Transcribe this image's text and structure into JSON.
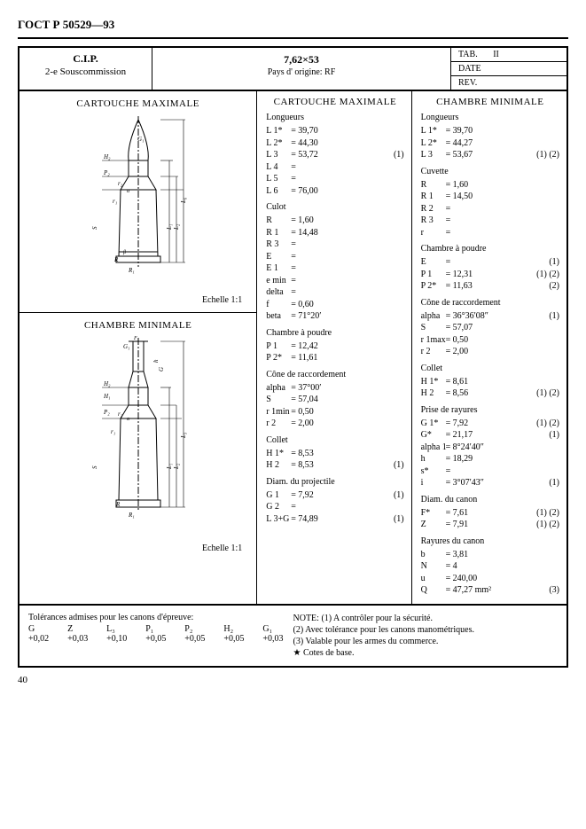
{
  "doc_header": "ГОСТ Р 50529—93",
  "header": {
    "cip_title": "C.I.P.",
    "cip_sub": "2-e Souscommission",
    "cal_title": "7,62×53",
    "cal_sub": "Pays d' origine: RF",
    "tab_label": "TAB.",
    "tab_value": "II",
    "date_label": "DATE",
    "rev_label": "REV."
  },
  "diagrams": {
    "cartridge_title": "CARTOUCHE MAXIMALE",
    "chamber_title": "CHAMBRE MINIMALE",
    "scale": "Echelle 1:1"
  },
  "data": {
    "left": {
      "title": "CARTOUCHE MAXIMALE",
      "groups": [
        {
          "heading": "Longueurs",
          "rows": [
            {
              "k": "L 1*",
              "v": "39,70"
            },
            {
              "k": "L 2*",
              "v": "44,30"
            },
            {
              "k": "L 3",
              "v": "53,72",
              "n": "(1)"
            },
            {
              "k": "L 4",
              "v": ""
            },
            {
              "k": "L 5",
              "v": ""
            },
            {
              "k": "L 6",
              "v": "76,00"
            }
          ]
        },
        {
          "heading": "Culot",
          "rows": [
            {
              "k": "R",
              "v": "1,60"
            },
            {
              "k": "R 1",
              "v": "14,48"
            },
            {
              "k": "R 3",
              "v": ""
            },
            {
              "k": "E",
              "v": ""
            },
            {
              "k": "E 1",
              "v": ""
            },
            {
              "k": "e min",
              "v": ""
            },
            {
              "k": "delta",
              "v": ""
            },
            {
              "k": "f",
              "v": "0,60"
            },
            {
              "k": "beta",
              "v": "71°20′"
            }
          ]
        },
        {
          "heading": "Chambre à poudre",
          "rows": [
            {
              "k": "P 1",
              "v": "12,42"
            },
            {
              "k": "P 2*",
              "v": "11,61"
            }
          ]
        },
        {
          "heading": "Cône de raccordement",
          "rows": [
            {
              "k": "alpha",
              "v": "37°00′"
            },
            {
              "k": "S",
              "v": "57,04"
            },
            {
              "k": "r 1min",
              "v": "0,50"
            },
            {
              "k": "r 2",
              "v": "2,00"
            }
          ]
        },
        {
          "heading": "Collet",
          "rows": [
            {
              "k": "H 1*",
              "v": "8,53"
            },
            {
              "k": "H 2",
              "v": "8,53",
              "n": "(1)"
            }
          ]
        },
        {
          "heading": "Diam. du projectile",
          "rows": [
            {
              "k": "G 1",
              "v": "7,92",
              "n": "(1)"
            },
            {
              "k": "G 2",
              "v": ""
            },
            {
              "k": "L 3+G",
              "v": "74,89",
              "n": "(1)"
            }
          ]
        }
      ]
    },
    "right": {
      "title": "CHAMBRE MINIMALE",
      "groups": [
        {
          "heading": "Longueurs",
          "rows": [
            {
              "k": "L 1*",
              "v": "39,70"
            },
            {
              "k": "L 2*",
              "v": "44,27"
            },
            {
              "k": "L 3",
              "v": "53,67",
              "n": "(1) (2)"
            }
          ]
        },
        {
          "heading": "Cuvette",
          "rows": [
            {
              "k": "R",
              "v": "1,60"
            },
            {
              "k": "R 1",
              "v": "14,50"
            },
            {
              "k": "R 2",
              "v": ""
            },
            {
              "k": "R 3",
              "v": ""
            },
            {
              "k": "r",
              "v": ""
            }
          ]
        },
        {
          "heading": "Chambre à poudre",
          "rows": [
            {
              "k": "E",
              "v": "",
              "n": "(1)"
            },
            {
              "k": "P 1",
              "v": "12,31",
              "n": "(1) (2)"
            },
            {
              "k": "P 2*",
              "v": "11,63",
              "n": "(2)"
            }
          ]
        },
        {
          "heading": "Cône de raccordement",
          "rows": [
            {
              "k": "alpha",
              "v": "36°36′08″",
              "n": "(1)"
            },
            {
              "k": "S",
              "v": "57,07"
            },
            {
              "k": "r 1max",
              "v": "0,50"
            },
            {
              "k": "r 2",
              "v": "2,00"
            }
          ]
        },
        {
          "heading": "Collet",
          "rows": [
            {
              "k": "H 1*",
              "v": "8,61"
            },
            {
              "k": "H 2",
              "v": "8,56",
              "n": "(1) (2)"
            }
          ]
        },
        {
          "heading": "Prise de rayures",
          "rows": [
            {
              "k": "G 1*",
              "v": "7,92",
              "n": "(1) (2)"
            },
            {
              "k": "G*",
              "v": "21,17",
              "n": "(1)"
            },
            {
              "k": "alpha 1",
              "v": "8°24′40″"
            },
            {
              "k": "h",
              "v": "18,29"
            },
            {
              "k": "s*",
              "v": ""
            },
            {
              "k": "i",
              "v": "3°07′43″",
              "n": "(1)"
            }
          ]
        },
        {
          "heading": "Diam. du canon",
          "rows": [
            {
              "k": "F*",
              "v": "7,61",
              "n": "(1) (2)"
            },
            {
              "k": "Z",
              "v": "7,91",
              "n": "(1) (2)"
            }
          ]
        },
        {
          "heading": "Rayures du canon",
          "rows": [
            {
              "k": "b",
              "v": "3,81"
            },
            {
              "k": "N",
              "v": "4"
            },
            {
              "k": "u",
              "v": "240,00"
            },
            {
              "k": "Q",
              "v": "47,27 mm²",
              "n": "(3)"
            }
          ]
        }
      ]
    }
  },
  "footer": {
    "tol_title": "Tolérances admises pour les canons d'épreuve:",
    "tol_cols": [
      "G",
      "Z",
      "L₃",
      "P₁",
      "P₂",
      "H₂",
      "G₁"
    ],
    "tol_vals": [
      "+0,02",
      "+0,03",
      "+0,10",
      "+0,05",
      "+0,05",
      "+0,05",
      "+0,03"
    ],
    "note_label": "NOTE:",
    "notes": [
      "(1) A contrôler pour la sécurité.",
      "(2) Avec tolérance pour les canons manométriques.",
      "(3) Valable pour les armes du commerce.",
      "★ Cotes de base."
    ]
  },
  "page_number": "40",
  "style": {
    "stroke": "#000000",
    "stroke_thin": 0.8,
    "stroke_med": 1.2,
    "font_small": 10,
    "font_body": 11
  }
}
